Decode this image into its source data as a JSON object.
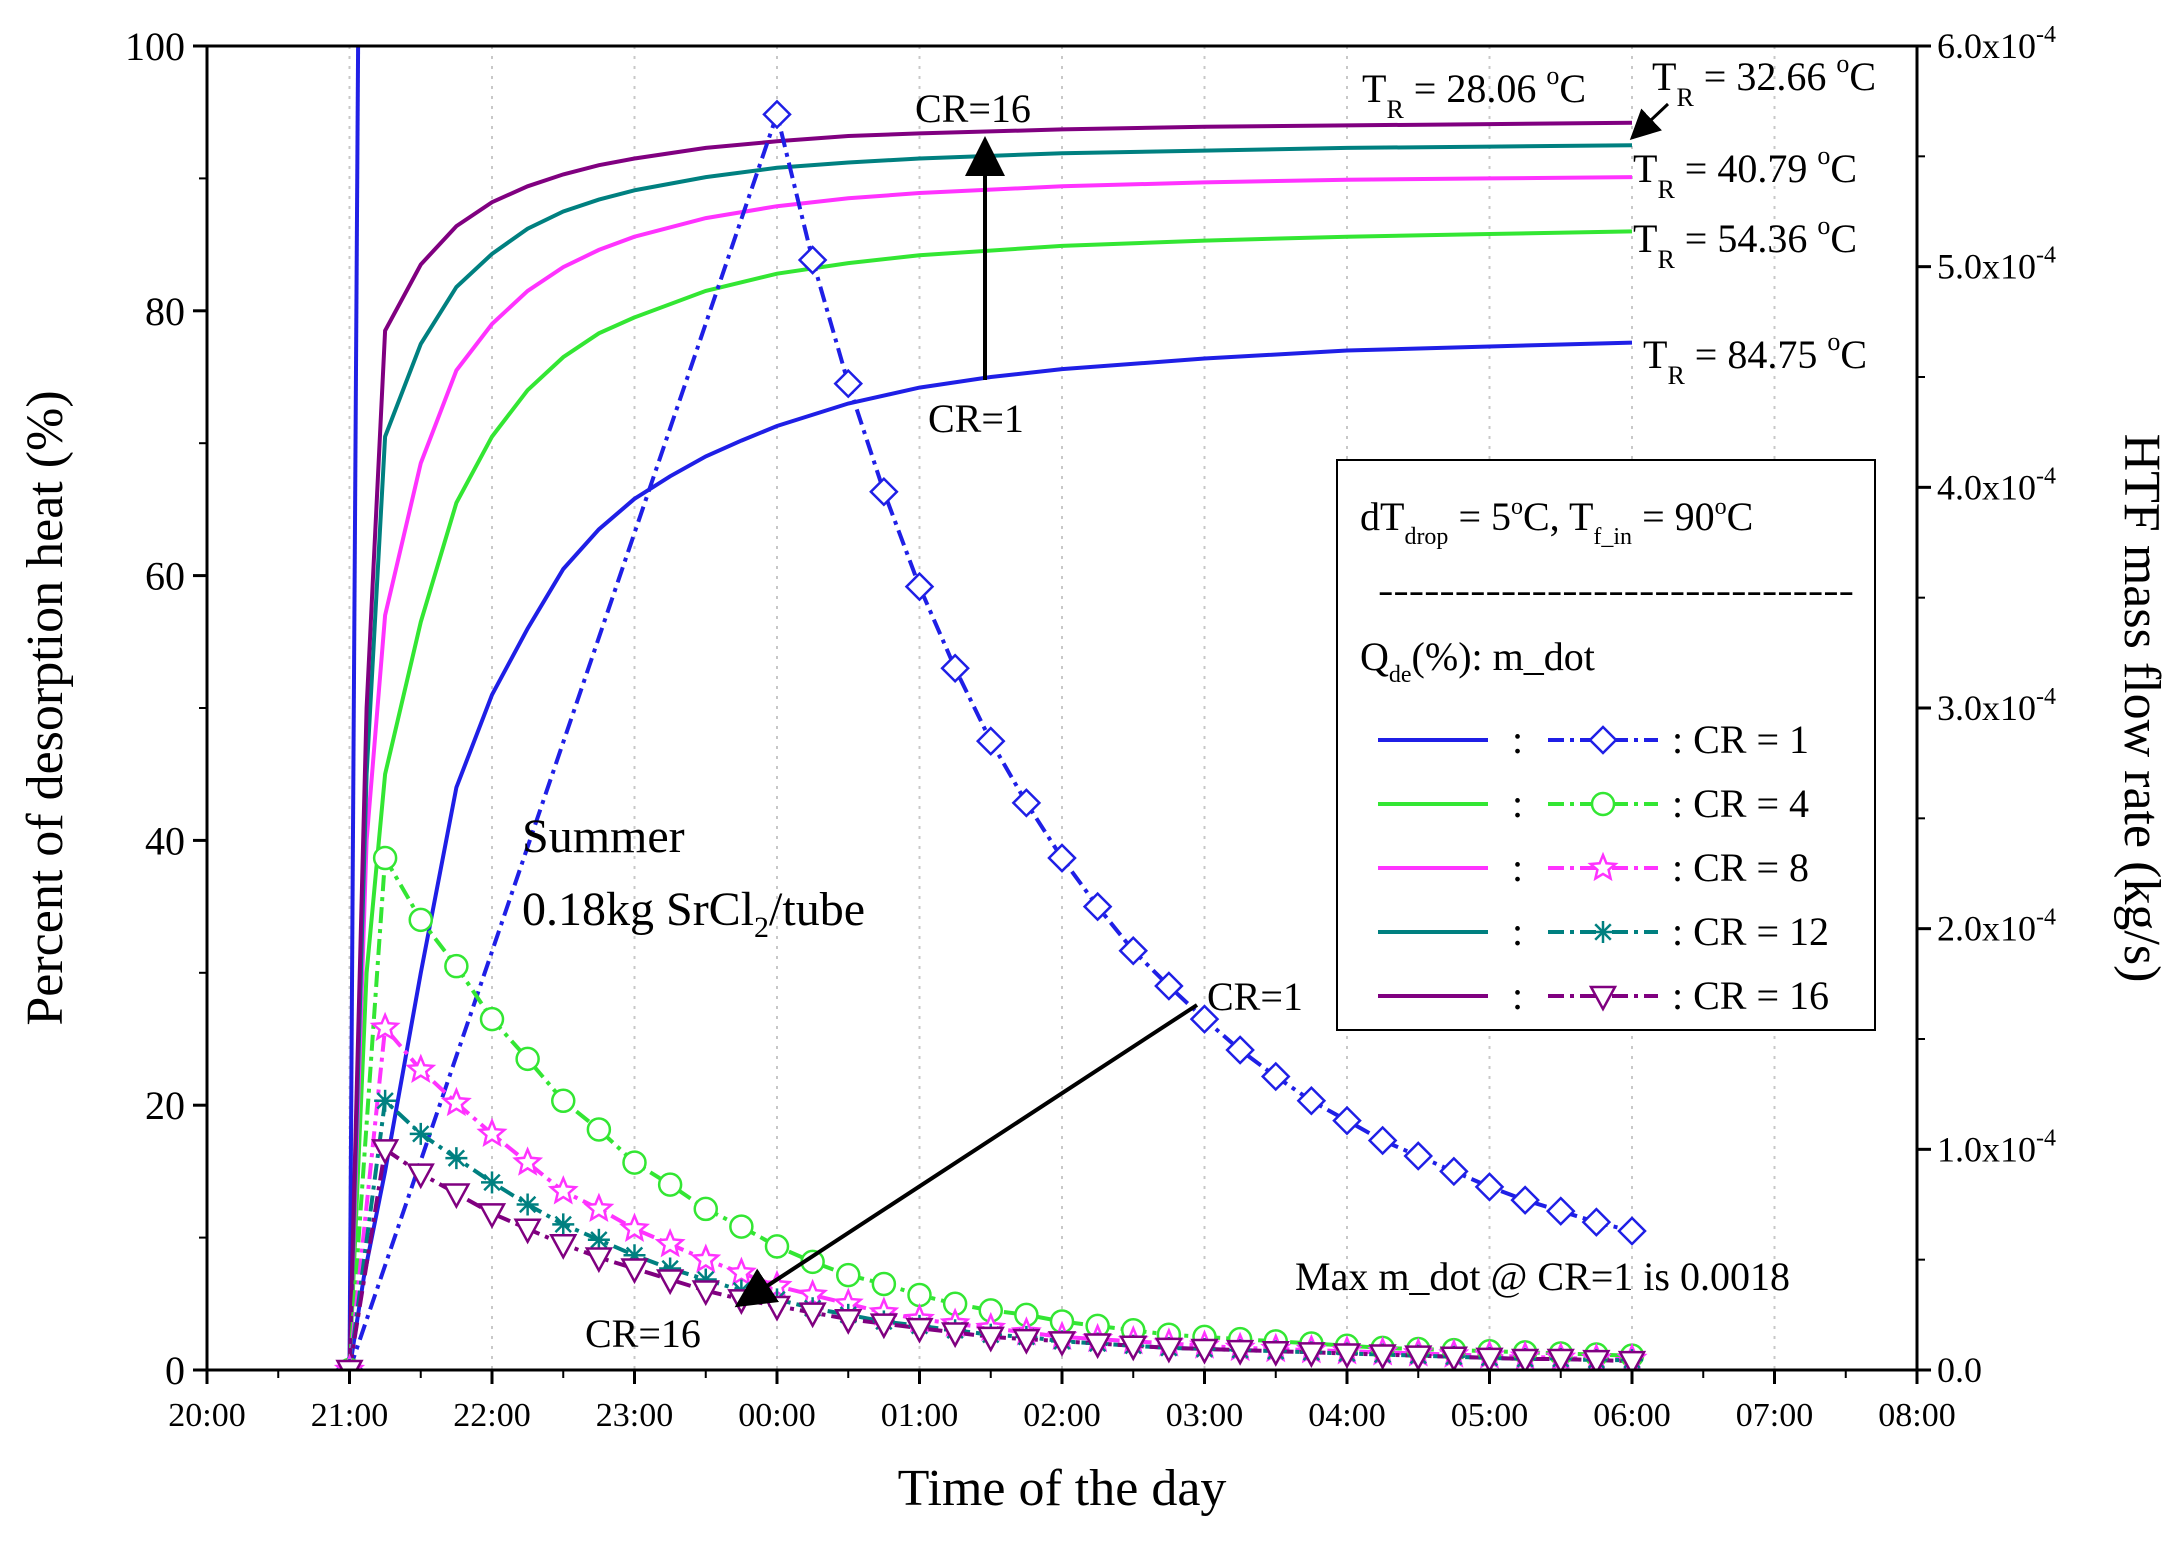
{
  "chart_data": {
    "type": "line",
    "xlabel": "Time of the day",
    "ylabel_left": "Percent of desorption heat (%)",
    "ylabel_right": "HTF mass flow rate (kg/s)",
    "x_ticks": [
      "20:00",
      "21:00",
      "22:00",
      "23:00",
      "00:00",
      "01:00",
      "02:00",
      "03:00",
      "04:00",
      "05:00",
      "06:00",
      "07:00",
      "08:00"
    ],
    "xlim_hours": [
      0,
      12
    ],
    "ylim_left": [
      0,
      100
    ],
    "y_ticks_left": [
      "0",
      "20",
      "40",
      "60",
      "80",
      "100"
    ],
    "ylim_right": [
      0,
      0.0006
    ],
    "y_ticks_right": [
      {
        "mant": "0.0",
        "exp": ""
      },
      {
        "mant": "1.0x10",
        "exp": "-4"
      },
      {
        "mant": "2.0x10",
        "exp": "-4"
      },
      {
        "mant": "3.0x10",
        "exp": "-4"
      },
      {
        "mant": "4.0x10",
        "exp": "-4"
      },
      {
        "mant": "5.0x10",
        "exp": "-4"
      },
      {
        "mant": "6.0x10",
        "exp": "-4"
      }
    ],
    "grid_vertical": true,
    "colors": {
      "CR1": "#1f1fe6",
      "CR4": "#33e633",
      "CR8": "#ff33ff",
      "CR12": "#008080",
      "CR16": "#800080"
    },
    "qde_series": [
      {
        "name": "CR = 1",
        "color": "#1f1fe6",
        "x": [
          1.0,
          1.1,
          1.25,
          1.5,
          1.75,
          2.0,
          2.25,
          2.5,
          2.75,
          3.0,
          3.25,
          3.5,
          3.75,
          4.0,
          4.5,
          5.0,
          5.5,
          6.0,
          7.0,
          8.0,
          9.0,
          10.0
        ],
        "values": [
          0,
          7,
          15,
          30,
          44,
          51,
          56,
          60.5,
          63.5,
          65.8,
          67.5,
          69,
          70.2,
          71.3,
          73,
          74.2,
          75,
          75.6,
          76.4,
          77,
          77.3,
          77.6
        ]
      },
      {
        "name": "CR = 4",
        "color": "#33e633",
        "x": [
          1.0,
          1.12,
          1.25,
          1.5,
          1.75,
          2.0,
          2.25,
          2.5,
          2.75,
          3.0,
          3.5,
          4.0,
          4.5,
          5.0,
          6.0,
          7.0,
          8.0,
          9.0,
          10.0
        ],
        "values": [
          0,
          30,
          45,
          56.5,
          65.5,
          70.5,
          74,
          76.5,
          78.3,
          79.5,
          81.5,
          82.8,
          83.6,
          84.2,
          84.9,
          85.3,
          85.6,
          85.8,
          86
        ]
      },
      {
        "name": "CR = 8",
        "color": "#ff33ff",
        "x": [
          1.0,
          1.12,
          1.25,
          1.5,
          1.75,
          2.0,
          2.25,
          2.5,
          2.75,
          3.0,
          3.5,
          4.0,
          4.5,
          5.0,
          6.0,
          7.0,
          8.0,
          9.0,
          10.0
        ],
        "values": [
          0,
          40,
          57,
          68.5,
          75.5,
          79,
          81.5,
          83.3,
          84.6,
          85.6,
          87,
          87.9,
          88.5,
          88.9,
          89.4,
          89.7,
          89.9,
          90,
          90.1
        ]
      },
      {
        "name": "CR = 12",
        "color": "#008080",
        "x": [
          1.0,
          1.12,
          1.25,
          1.5,
          1.75,
          2.0,
          2.25,
          2.5,
          2.75,
          3.0,
          3.5,
          4.0,
          4.5,
          5.0,
          6.0,
          7.0,
          8.0,
          9.0,
          10.0
        ],
        "values": [
          0,
          45,
          70.5,
          77.5,
          81.8,
          84.3,
          86.2,
          87.5,
          88.4,
          89.1,
          90.1,
          90.8,
          91.2,
          91.5,
          91.9,
          92.1,
          92.3,
          92.4,
          92.5
        ]
      },
      {
        "name": "CR = 16",
        "color": "#800080",
        "x": [
          1.0,
          1.12,
          1.25,
          1.5,
          1.75,
          2.0,
          2.25,
          2.5,
          2.75,
          3.0,
          3.5,
          4.0,
          4.5,
          5.0,
          6.0,
          7.0,
          8.0,
          9.0,
          10.0
        ],
        "values": [
          0,
          50,
          78.5,
          83.5,
          86.4,
          88.2,
          89.4,
          90.3,
          91,
          91.5,
          92.3,
          92.8,
          93.2,
          93.4,
          93.7,
          93.9,
          94,
          94.1,
          94.2
        ]
      }
    ],
    "mdot_series": [
      {
        "name": "CR = 1",
        "color": "#1f1fe6",
        "marker": "diamond",
        "x": [
          1.0,
          4.0,
          4.25,
          4.5,
          4.75,
          5.0,
          5.25,
          5.5,
          5.75,
          6.0,
          6.25,
          6.5,
          6.75,
          7.0,
          7.25,
          7.5,
          7.75,
          8.0,
          8.25,
          8.5,
          8.75,
          9.0,
          9.25,
          9.5,
          9.75,
          10.0
        ],
        "values": [
          0,
          0.000569,
          0.000503,
          0.000447,
          0.000398,
          0.000355,
          0.000318,
          0.000285,
          0.000257,
          0.000232,
          0.00021,
          0.00019,
          0.000174,
          0.000159,
          0.000145,
          0.000133,
          0.000122,
          0.000113,
          0.000104,
          9.7e-05,
          9e-05,
          8.3e-05,
          7.7e-05,
          7.2e-05,
          6.7e-05,
          6.3e-05
        ]
      },
      {
        "name": "CR = 4",
        "color": "#33e633",
        "marker": "circle",
        "x": [
          1.0,
          1.25,
          1.5,
          1.75,
          2.0,
          2.25,
          2.5,
          2.75,
          3.0,
          3.25,
          3.5,
          3.75,
          4.0,
          4.25,
          4.5,
          4.75,
          5.0,
          5.25,
          5.5,
          5.75,
          6.0,
          6.25,
          6.5,
          6.75,
          7.0,
          7.25,
          7.5,
          7.75,
          8.0,
          8.25,
          8.5,
          8.75,
          9.0,
          9.25,
          9.5,
          9.75,
          10.0
        ],
        "values": [
          0,
          0.000232,
          0.000204,
          0.000183,
          0.000159,
          0.000141,
          0.000122,
          0.000109,
          9.4e-05,
          8.4e-05,
          7.3e-05,
          6.5e-05,
          5.6e-05,
          4.9e-05,
          4.3e-05,
          3.9e-05,
          3.4e-05,
          3e-05,
          2.7e-05,
          2.5e-05,
          2.2e-05,
          2e-05,
          1.8e-05,
          1.6e-05,
          1.5e-05,
          1.4e-05,
          1.3e-05,
          1.2e-05,
          1.1e-05,
          1e-05,
          9.5e-06,
          9e-06,
          8.5e-06,
          8e-06,
          7.5e-06,
          7e-06,
          6.5e-06
        ]
      },
      {
        "name": "CR = 8",
        "color": "#ff33ff",
        "marker": "star",
        "x": [
          1.0,
          1.25,
          1.5,
          1.75,
          2.0,
          2.25,
          2.5,
          2.75,
          3.0,
          3.25,
          3.5,
          3.75,
          4.0,
          4.25,
          4.5,
          4.75,
          5.0,
          5.25,
          5.5,
          5.75,
          6.0,
          6.25,
          6.5,
          6.75,
          7.0,
          7.25,
          7.5,
          7.75,
          8.0,
          8.25,
          8.5,
          8.75,
          9.0,
          9.25,
          9.5,
          9.75,
          10.0
        ],
        "values": [
          0,
          0.000155,
          0.000136,
          0.000121,
          0.000107,
          9.4e-05,
          8.1e-05,
          7.3e-05,
          6.4e-05,
          5.7e-05,
          5e-05,
          4.4e-05,
          3.8e-05,
          3.4e-05,
          3e-05,
          2.6e-05,
          2.3e-05,
          2.1e-05,
          1.9e-05,
          1.7e-05,
          1.5e-05,
          1.4e-05,
          1.3e-05,
          1.2e-05,
          1.1e-05,
          1e-05,
          9.5e-06,
          9e-06,
          8.5e-06,
          8e-06,
          7.5e-06,
          7e-06,
          6.5e-06,
          6e-06,
          5.5e-06,
          5e-06,
          5e-06
        ]
      },
      {
        "name": "CR = 12",
        "color": "#008080",
        "marker": "asterisk",
        "x": [
          1.0,
          1.25,
          1.5,
          1.75,
          2.0,
          2.25,
          2.5,
          2.75,
          3.0,
          3.25,
          3.5,
          3.75,
          4.0,
          4.25,
          4.5,
          4.75,
          5.0,
          5.25,
          5.5,
          5.75,
          6.0,
          6.25,
          6.5,
          6.75,
          7.0,
          7.25,
          7.5,
          7.75,
          8.0,
          8.25,
          8.5,
          8.75,
          9.0,
          9.25,
          9.5,
          9.75,
          10.0
        ],
        "values": [
          0,
          0.000122,
          0.000107,
          9.6e-05,
          8.5e-05,
          7.5e-05,
          6.6e-05,
          5.9e-05,
          5.2e-05,
          4.6e-05,
          4.1e-05,
          3.6e-05,
          3.2e-05,
          2.8e-05,
          2.5e-05,
          2.2e-05,
          2e-05,
          1.8e-05,
          1.6e-05,
          1.5e-05,
          1.3e-05,
          1.2e-05,
          1.1e-05,
          1e-05,
          9.5e-06,
          9e-06,
          8.5e-06,
          8e-06,
          7.5e-06,
          7e-06,
          6.5e-06,
          6e-06,
          5.5e-06,
          5e-06,
          5e-06,
          4.5e-06,
          4.5e-06
        ]
      },
      {
        "name": "CR = 16",
        "color": "#800080",
        "marker": "triangle-down",
        "x": [
          1.0,
          1.25,
          1.5,
          1.75,
          2.0,
          2.25,
          2.5,
          2.75,
          3.0,
          3.25,
          3.5,
          3.75,
          4.0,
          4.25,
          4.5,
          4.75,
          5.0,
          5.25,
          5.5,
          5.75,
          6.0,
          6.25,
          6.5,
          6.75,
          7.0,
          7.25,
          7.5,
          7.75,
          8.0,
          8.25,
          8.5,
          8.75,
          9.0,
          9.25,
          9.5,
          9.75,
          10.0
        ],
        "values": [
          0,
          0.0001,
          8.9e-05,
          8e-05,
          7.1e-05,
          6.4e-05,
          5.7e-05,
          5.1e-05,
          4.6e-05,
          4.1e-05,
          3.6e-05,
          3.2e-05,
          2.9e-05,
          2.6e-05,
          2.3e-05,
          2.1e-05,
          1.9e-05,
          1.7e-05,
          1.5e-05,
          1.4e-05,
          1.3e-05,
          1.2e-05,
          1.1e-05,
          1e-05,
          9.5e-06,
          9e-06,
          8.5e-06,
          8e-06,
          7.5e-06,
          7e-06,
          6.5e-06,
          6e-06,
          5.5e-06,
          5e-06,
          5e-06,
          4.5e-06,
          4e-06
        ]
      }
    ],
    "spike_line": {
      "color": "#1f1fe6",
      "x": [
        1.0,
        1.06
      ],
      "values": [
        0,
        100
      ]
    },
    "annotations": {
      "season": "Summer",
      "mass_prefix": "0.18kg SrCl",
      "mass_sub": "2",
      "mass_suffix": "/tube",
      "cr16_top": "CR=16",
      "cr1_mid": "CR=1",
      "cr1_right": "CR=1",
      "cr16_bottom": "CR=16",
      "max_note": "Max m_dot @ CR=1 is 0.0018",
      "tr_prefix": "T",
      "tr_sub": "R",
      "tr_eq": " = ",
      "tr_unit_sup": "o",
      "tr_unit": "C",
      "tr_values": [
        "28.06",
        "32.66",
        "40.79",
        "54.36",
        "84.75"
      ]
    },
    "legend": {
      "cond_a": "dT",
      "cond_a_sub": "drop",
      "cond_b": " = 5",
      "cond_b_sup": "o",
      "cond_c": "C, T",
      "cond_c_sub": "f_in",
      "cond_d": " = 90",
      "cond_d_sup": "o",
      "cond_e": "C",
      "dashes": "-------------------------------",
      "header_a": "Q",
      "header_sub": "de",
      "header_b": "(%): m_dot",
      "sep": ":",
      "items": [
        ": CR = 1",
        ": CR = 4",
        ": CR = 8",
        ": CR = 12",
        ": CR = 16"
      ]
    }
  }
}
